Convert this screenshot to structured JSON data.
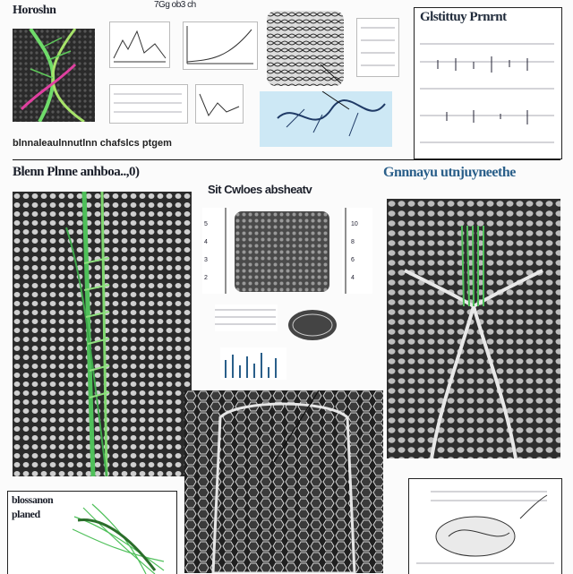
{
  "header": {
    "top_left_title": "Horoshn",
    "top_center_label": "7Gg ob3 ch",
    "top_right_title": "Glstittuy Prnrnt",
    "caption_strip": "blnnaleaulnnutlnn chafslcs ptgem"
  },
  "sections": {
    "left_title": "Blenn Plnne anhboa..,0)",
    "center_title": "Sit Cwloes absheatv",
    "right_title": "Gnnnayu utnjuyneethe",
    "bottom_left_title_line1": "blossanon",
    "bottom_left_title_line2": "planed"
  },
  "colors": {
    "accent_green": "#4fc05a",
    "tissue_dark": "#3a3a3a",
    "tissue_light": "#cfcfcf",
    "title_blue": "#2a5f8a",
    "diagram_blue": "#b9dff0"
  },
  "icons": [
    "green-nerve-figure",
    "spongy-tissue-texture",
    "line-chart-thumbnail",
    "arrow-pointer"
  ]
}
